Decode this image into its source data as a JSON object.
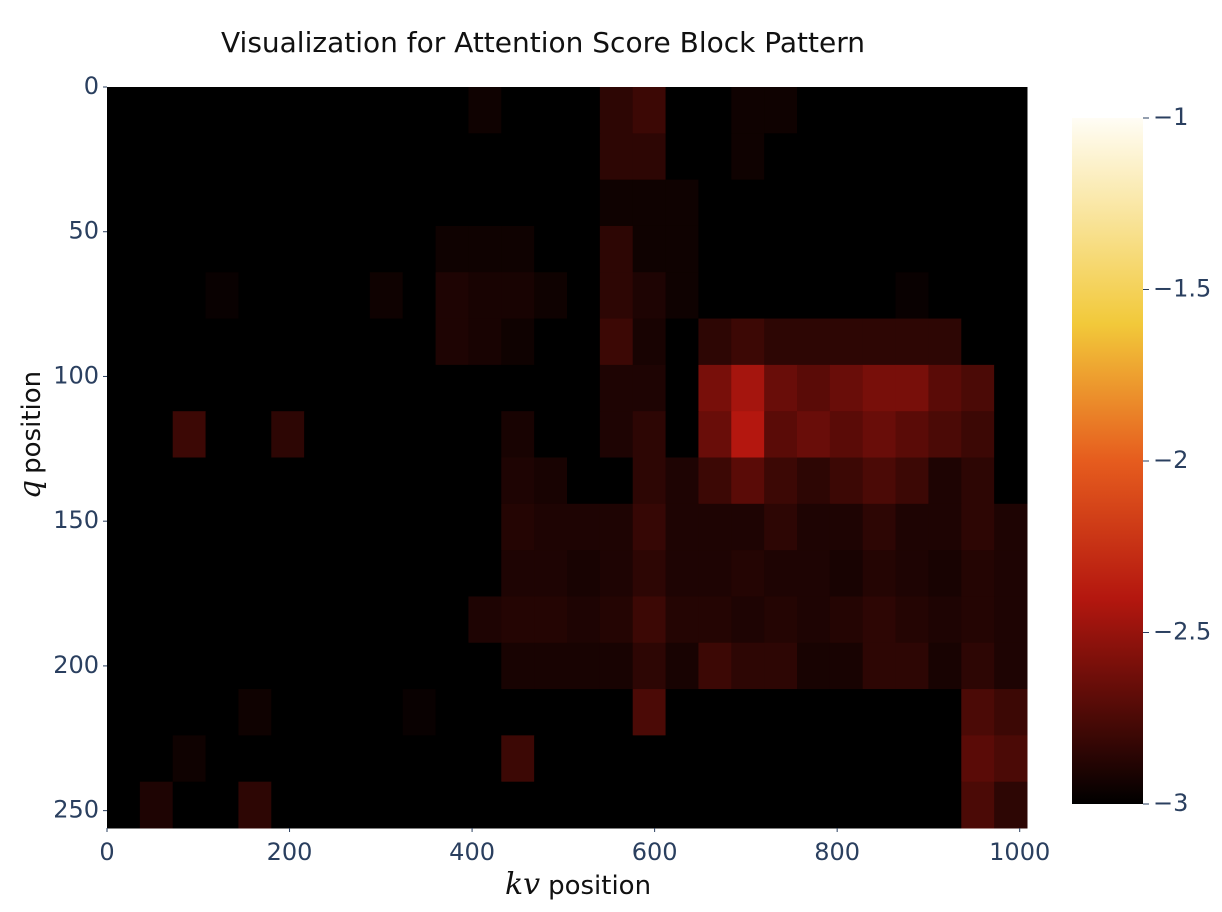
{
  "chart_data": {
    "type": "heatmap",
    "title": "Visualization for Attention Score Block Pattern",
    "xlabel_math": "kv",
    "xlabel": "position",
    "ylabel_math": "q",
    "ylabel": "position",
    "x": [
      18,
      54,
      90,
      126,
      162,
      198,
      234,
      270,
      306,
      342,
      378,
      414,
      450,
      486,
      522,
      558,
      594,
      630,
      666,
      702,
      738,
      774,
      810,
      846,
      882,
      918,
      954,
      990
    ],
    "y": [
      8,
      24,
      40,
      56,
      72,
      88,
      104,
      120,
      136,
      152,
      168,
      184,
      200,
      216,
      232,
      248
    ],
    "xlim": [
      0,
      1008
    ],
    "ylim": [
      0,
      256
    ],
    "y_reversed": true,
    "xticks": [
      0,
      200,
      400,
      600,
      800,
      1000
    ],
    "yticks": [
      0,
      50,
      100,
      150,
      200,
      250
    ],
    "zlim": [
      -3,
      -1
    ],
    "zticks": [
      {
        "value": -1,
        "label": "−1"
      },
      {
        "value": -1.5,
        "label": "−1.5"
      },
      {
        "value": -2,
        "label": "−2"
      },
      {
        "value": -2.5,
        "label": "−2.5"
      },
      {
        "value": -3,
        "label": "−3"
      }
    ],
    "colorscale": [
      [
        0,
        "#000000"
      ],
      [
        0.3,
        "#b4170f"
      ],
      [
        0.5,
        "#e65c1e"
      ],
      [
        0.7,
        "#f2c93a"
      ],
      [
        1,
        "#fffdf5"
      ]
    ],
    "z": [
      [
        -3,
        -3,
        -3,
        -3,
        -3,
        -3,
        -3,
        -3,
        -3,
        -3,
        -3,
        -2.95,
        -3,
        -3,
        -3,
        -2.85,
        -2.8,
        -3,
        -3,
        -2.95,
        -2.95,
        -3,
        -3,
        -3,
        -3,
        -3,
        -3,
        -3
      ],
      [
        -3,
        -3,
        -3,
        -3,
        -3,
        -3,
        -3,
        -3,
        -3,
        -3,
        -3,
        -3,
        -3,
        -3,
        -3,
        -2.85,
        -2.85,
        -3,
        -3,
        -2.95,
        -3,
        -3,
        -3,
        -3,
        -3,
        -3,
        -3,
        -3
      ],
      [
        -3,
        -3,
        -3,
        -3,
        -3,
        -3,
        -3,
        -3,
        -3,
        -3,
        -3,
        -3,
        -3,
        -3,
        -3,
        -2.95,
        -2.95,
        -2.95,
        -3,
        -3,
        -3,
        -3,
        -3,
        -3,
        -3,
        -3,
        -3,
        -3
      ],
      [
        -3,
        -3,
        -3,
        -3,
        -3,
        -3,
        -3,
        -3,
        -3,
        -3,
        -2.95,
        -2.95,
        -2.95,
        -3,
        -3,
        -2.85,
        -2.95,
        -2.95,
        -3,
        -3,
        -3,
        -3,
        -3,
        -3,
        -3,
        -3,
        -3,
        -3
      ],
      [
        -3,
        -3,
        -3,
        -2.97,
        -3,
        -3,
        -3,
        -3,
        -2.95,
        -3,
        -2.9,
        -2.92,
        -2.92,
        -2.95,
        -3,
        -2.85,
        -2.9,
        -2.95,
        -3,
        -3,
        -3,
        -3,
        -3,
        -3,
        -2.97,
        -3,
        -3,
        -3
      ],
      [
        -3,
        -3,
        -3,
        -3,
        -3,
        -3,
        -3,
        -3,
        -3,
        -3,
        -2.9,
        -2.92,
        -2.95,
        -3,
        -3,
        -2.8,
        -2.92,
        -3,
        -2.85,
        -2.8,
        -2.85,
        -2.85,
        -2.85,
        -2.85,
        -2.85,
        -2.85,
        -3,
        -3
      ],
      [
        -3,
        -3,
        -3,
        -3,
        -3,
        -3,
        -3,
        -3,
        -3,
        -3,
        -3,
        -3,
        -3,
        -3,
        -3,
        -2.9,
        -2.9,
        -3,
        -2.6,
        -2.45,
        -2.65,
        -2.7,
        -2.65,
        -2.6,
        -2.6,
        -2.7,
        -2.75,
        -3
      ],
      [
        -3,
        -3,
        -2.8,
        -3,
        -3,
        -2.85,
        -3,
        -3,
        -3,
        -3,
        -3,
        -3,
        -2.92,
        -3,
        -3,
        -2.9,
        -2.85,
        -3,
        -2.65,
        -2.4,
        -2.7,
        -2.65,
        -2.7,
        -2.65,
        -2.7,
        -2.75,
        -2.8,
        -3
      ],
      [
        -3,
        -3,
        -3,
        -3,
        -3,
        -3,
        -3,
        -3,
        -3,
        -3,
        -3,
        -3,
        -2.9,
        -2.92,
        -3,
        -3,
        -2.85,
        -2.9,
        -2.8,
        -2.7,
        -2.8,
        -2.85,
        -2.8,
        -2.75,
        -2.8,
        -2.9,
        -2.85,
        -3
      ],
      [
        -3,
        -3,
        -3,
        -3,
        -3,
        -3,
        -3,
        -3,
        -3,
        -3,
        -3,
        -3,
        -2.88,
        -2.9,
        -2.9,
        -2.9,
        -2.82,
        -2.9,
        -2.9,
        -2.9,
        -2.85,
        -2.9,
        -2.9,
        -2.85,
        -2.9,
        -2.9,
        -2.85,
        -2.9
      ],
      [
        -3,
        -3,
        -3,
        -3,
        -3,
        -3,
        -3,
        -3,
        -3,
        -3,
        -3,
        -3,
        -2.9,
        -2.9,
        -2.92,
        -2.9,
        -2.85,
        -2.9,
        -2.9,
        -2.88,
        -2.9,
        -2.9,
        -2.92,
        -2.88,
        -2.9,
        -2.92,
        -2.88,
        -2.9
      ],
      [
        -3,
        -3,
        -3,
        -3,
        -3,
        -3,
        -3,
        -3,
        -3,
        -3,
        -3,
        -2.9,
        -2.88,
        -2.88,
        -2.9,
        -2.88,
        -2.8,
        -2.88,
        -2.88,
        -2.9,
        -2.88,
        -2.9,
        -2.88,
        -2.85,
        -2.88,
        -2.9,
        -2.88,
        -2.9
      ],
      [
        -3,
        -3,
        -3,
        -3,
        -3,
        -3,
        -3,
        -3,
        -3,
        -3,
        -3,
        -3,
        -2.92,
        -2.92,
        -2.92,
        -2.92,
        -2.85,
        -2.92,
        -2.8,
        -2.85,
        -2.85,
        -2.92,
        -2.92,
        -2.85,
        -2.85,
        -2.92,
        -2.85,
        -2.9
      ],
      [
        -3,
        -3,
        -3,
        -3,
        -2.95,
        -3,
        -3,
        -3,
        -3,
        -2.97,
        -3,
        -3,
        -3,
        -3,
        -3,
        -3,
        -2.75,
        -3,
        -3,
        -3,
        -3,
        -3,
        -3,
        -3,
        -3,
        -3,
        -2.75,
        -2.8
      ],
      [
        -3,
        -3,
        -2.95,
        -3,
        -3,
        -3,
        -3,
        -3,
        -3,
        -3,
        -3,
        -3,
        -2.8,
        -3,
        -3,
        -3,
        -3,
        -3,
        -3,
        -3,
        -3,
        -3,
        -3,
        -3,
        -3,
        -3,
        -2.7,
        -2.75
      ],
      [
        -3,
        -2.9,
        -3,
        -3,
        -2.85,
        -3,
        -3,
        -3,
        -3,
        -3,
        -3,
        -3,
        -3,
        -3,
        -3,
        -3,
        -3,
        -3,
        -3,
        -3,
        -3,
        -3,
        -3,
        -3,
        -3,
        -3,
        -2.75,
        -2.85
      ]
    ]
  }
}
